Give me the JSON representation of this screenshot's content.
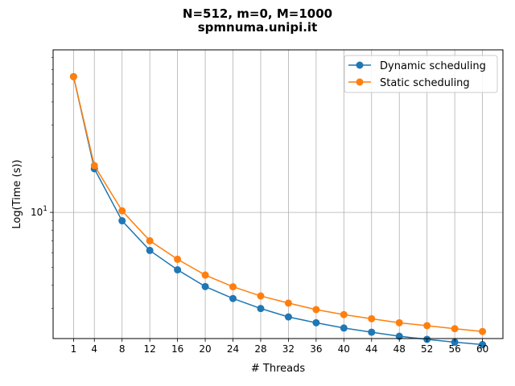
{
  "chart_data": {
    "type": "line",
    "title_line1": "N=512, m=0, M=1000",
    "title_line2": "spmnuma.unipi.it",
    "xlabel": "# Threads",
    "ylabel": "Log(Time (s))",
    "x": [
      1,
      4,
      8,
      12,
      16,
      20,
      24,
      28,
      32,
      36,
      40,
      44,
      48,
      52,
      56,
      60
    ],
    "x_tick_labels": [
      "1",
      "4",
      "8",
      "12",
      "16",
      "20",
      "24",
      "28",
      "32",
      "36",
      "40",
      "44",
      "48",
      "52",
      "56",
      "60"
    ],
    "y_scale": "log",
    "y_tick_labels": [
      {
        "value": 10,
        "base": "10",
        "exponent": "1"
      }
    ],
    "ylim": [
      2.05,
      77
    ],
    "xlim": [
      -1.95,
      62.95
    ],
    "grid": true,
    "legend_position": "top-right",
    "series": [
      {
        "name": "Dynamic scheduling",
        "color": "#1f77b4",
        "values": [
          55.0,
          17.3,
          9.0,
          6.2,
          4.86,
          3.94,
          3.39,
          2.99,
          2.69,
          2.5,
          2.34,
          2.22,
          2.11,
          2.03,
          1.96,
          1.9
        ]
      },
      {
        "name": "Static scheduling",
        "color": "#ff7f0e",
        "values": [
          55.0,
          18.0,
          10.2,
          7.0,
          5.55,
          4.55,
          3.93,
          3.5,
          3.2,
          2.95,
          2.77,
          2.63,
          2.5,
          2.41,
          2.32,
          2.24
        ]
      }
    ]
  }
}
